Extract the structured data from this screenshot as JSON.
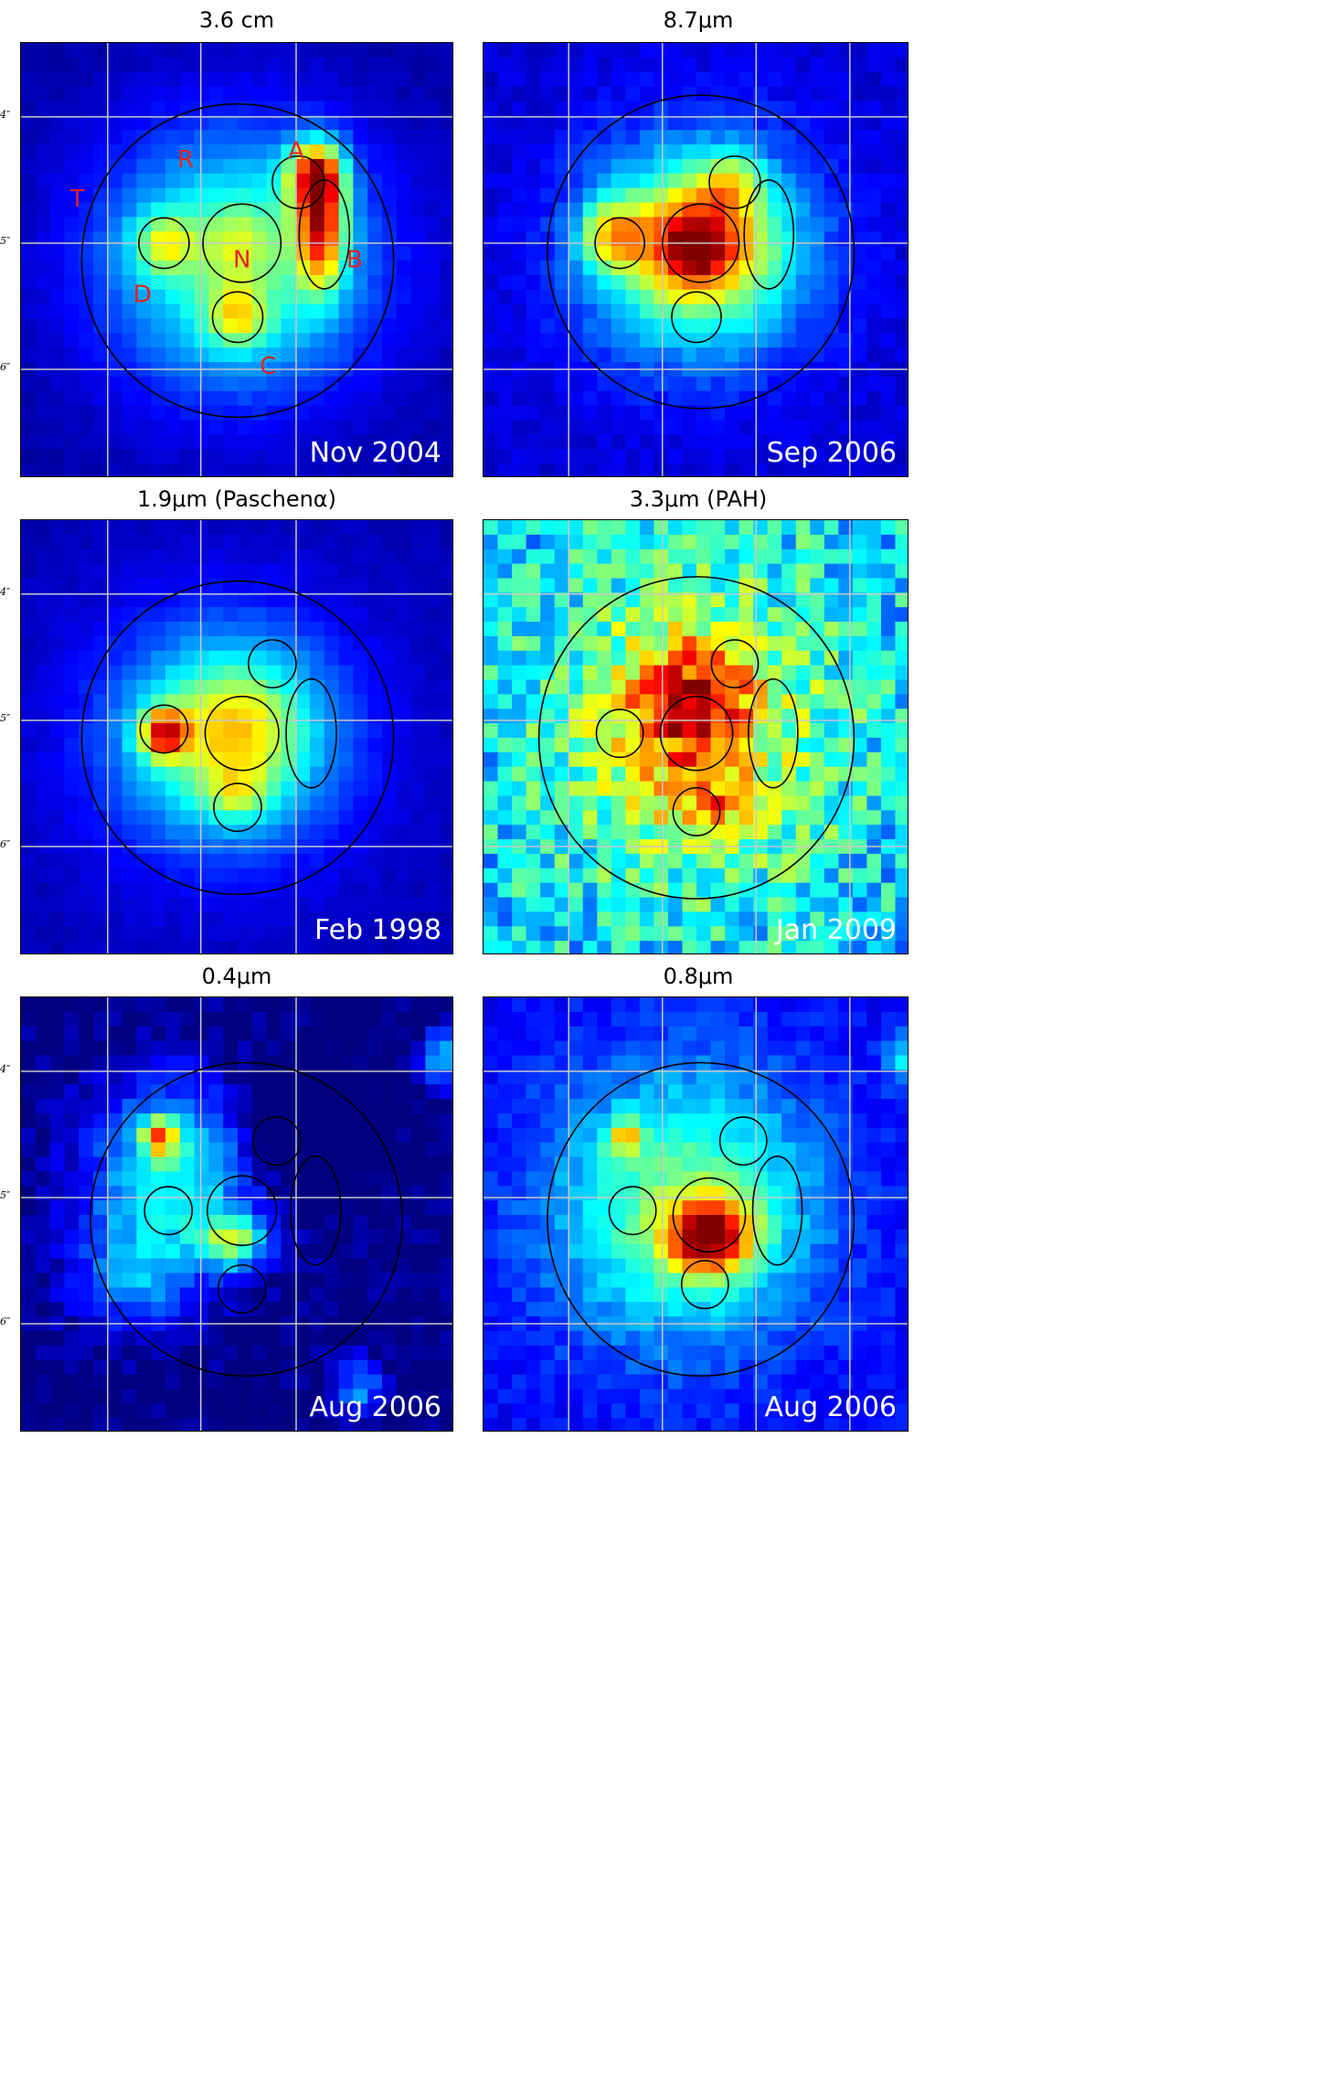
{
  "figure": {
    "panels": [
      {
        "id": "p1",
        "title": "3.6 cm",
        "date": "Nov 2004",
        "labels": [
          "A",
          "B",
          "C",
          "D",
          "N",
          "R",
          "T"
        ],
        "map": "radio"
      },
      {
        "id": "p2",
        "title": "8.7μm",
        "date": "Sep 2006",
        "map": "mir"
      },
      {
        "id": "p3",
        "title": "1.9μm (Paschenα)",
        "date": "Feb 1998",
        "map": "pa"
      },
      {
        "id": "p4",
        "title": "3.3μm (PAH)",
        "date": "Jan 2009",
        "map": "pah"
      },
      {
        "id": "p5",
        "title": "0.4μm",
        "date": "Aug 2006",
        "map": "blue"
      },
      {
        "id": "p6",
        "title": "0.8μm",
        "date": "Aug 2006",
        "map": "red"
      }
    ],
    "yticks": [
      "4″",
      "5″",
      "6″"
    ],
    "colors": {
      "label": "#e8201f",
      "date": "#ffffff",
      "grid": "#c8c8c8",
      "aperture": "#000000"
    },
    "colormap": "jet"
  }
}
